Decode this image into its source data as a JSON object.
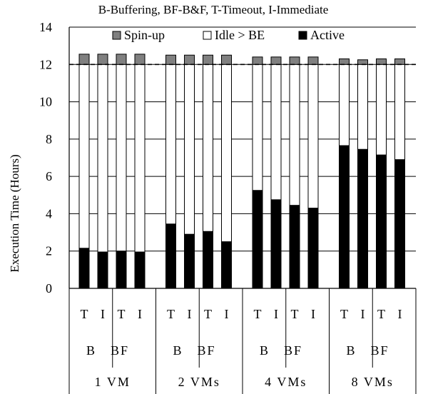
{
  "chart_data": {
    "type": "bar",
    "stacked": true,
    "title": "B-Buffering, BF-B&F, T-Timeout, I-Immediate",
    "ylabel": "Execution Time (Hours)",
    "xlabel": "",
    "ylim": [
      0,
      14
    ],
    "yticks": [
      0,
      2,
      4,
      6,
      8,
      10,
      12,
      14
    ],
    "reference_line": {
      "y": 12,
      "style": "dashed"
    },
    "legend_position": "top",
    "groups": [
      {
        "label": "1 VM",
        "subgroups": [
          {
            "label": "B",
            "bars": [
              {
                "label": "T",
                "active": 2.15,
                "idle": 9.85,
                "spinup": 0.55
              },
              {
                "label": "I",
                "active": 1.95,
                "idle": 10.05,
                "spinup": 0.55
              }
            ]
          },
          {
            "label": "BF",
            "bars": [
              {
                "label": "T",
                "active": 2.0,
                "idle": 10.0,
                "spinup": 0.55
              },
              {
                "label": "I",
                "active": 1.95,
                "idle": 10.05,
                "spinup": 0.55
              }
            ]
          }
        ]
      },
      {
        "label": "2 VMs",
        "subgroups": [
          {
            "label": "B",
            "bars": [
              {
                "label": "T",
                "active": 3.45,
                "idle": 8.55,
                "spinup": 0.5
              },
              {
                "label": "I",
                "active": 2.9,
                "idle": 9.1,
                "spinup": 0.5
              }
            ]
          },
          {
            "label": "BF",
            "bars": [
              {
                "label": "T",
                "active": 3.05,
                "idle": 8.95,
                "spinup": 0.5
              },
              {
                "label": "I",
                "active": 2.5,
                "idle": 9.5,
                "spinup": 0.5
              }
            ]
          }
        ]
      },
      {
        "label": "4 VMs",
        "subgroups": [
          {
            "label": "B",
            "bars": [
              {
                "label": "T",
                "active": 5.25,
                "idle": 6.75,
                "spinup": 0.4
              },
              {
                "label": "I",
                "active": 4.75,
                "idle": 7.25,
                "spinup": 0.4
              }
            ]
          },
          {
            "label": "BF",
            "bars": [
              {
                "label": "T",
                "active": 4.45,
                "idle": 7.55,
                "spinup": 0.4
              },
              {
                "label": "I",
                "active": 4.3,
                "idle": 7.7,
                "spinup": 0.4
              }
            ]
          }
        ]
      },
      {
        "label": "8 VMs",
        "subgroups": [
          {
            "label": "B",
            "bars": [
              {
                "label": "T",
                "active": 7.65,
                "idle": 4.35,
                "spinup": 0.3
              },
              {
                "label": "I",
                "active": 7.45,
                "idle": 4.55,
                "spinup": 0.25
              }
            ]
          },
          {
            "label": "BF",
            "bars": [
              {
                "label": "T",
                "active": 7.15,
                "idle": 4.85,
                "spinup": 0.3
              },
              {
                "label": "I",
                "active": 6.9,
                "idle": 5.1,
                "spinup": 0.3
              }
            ]
          }
        ]
      }
    ],
    "series": [
      {
        "key": "spinup",
        "name": "Spin-up",
        "color": "#808080"
      },
      {
        "key": "idle",
        "name": "Idle > BE",
        "color": "#ffffff"
      },
      {
        "key": "active",
        "name": "Active",
        "color": "#000000"
      }
    ]
  }
}
